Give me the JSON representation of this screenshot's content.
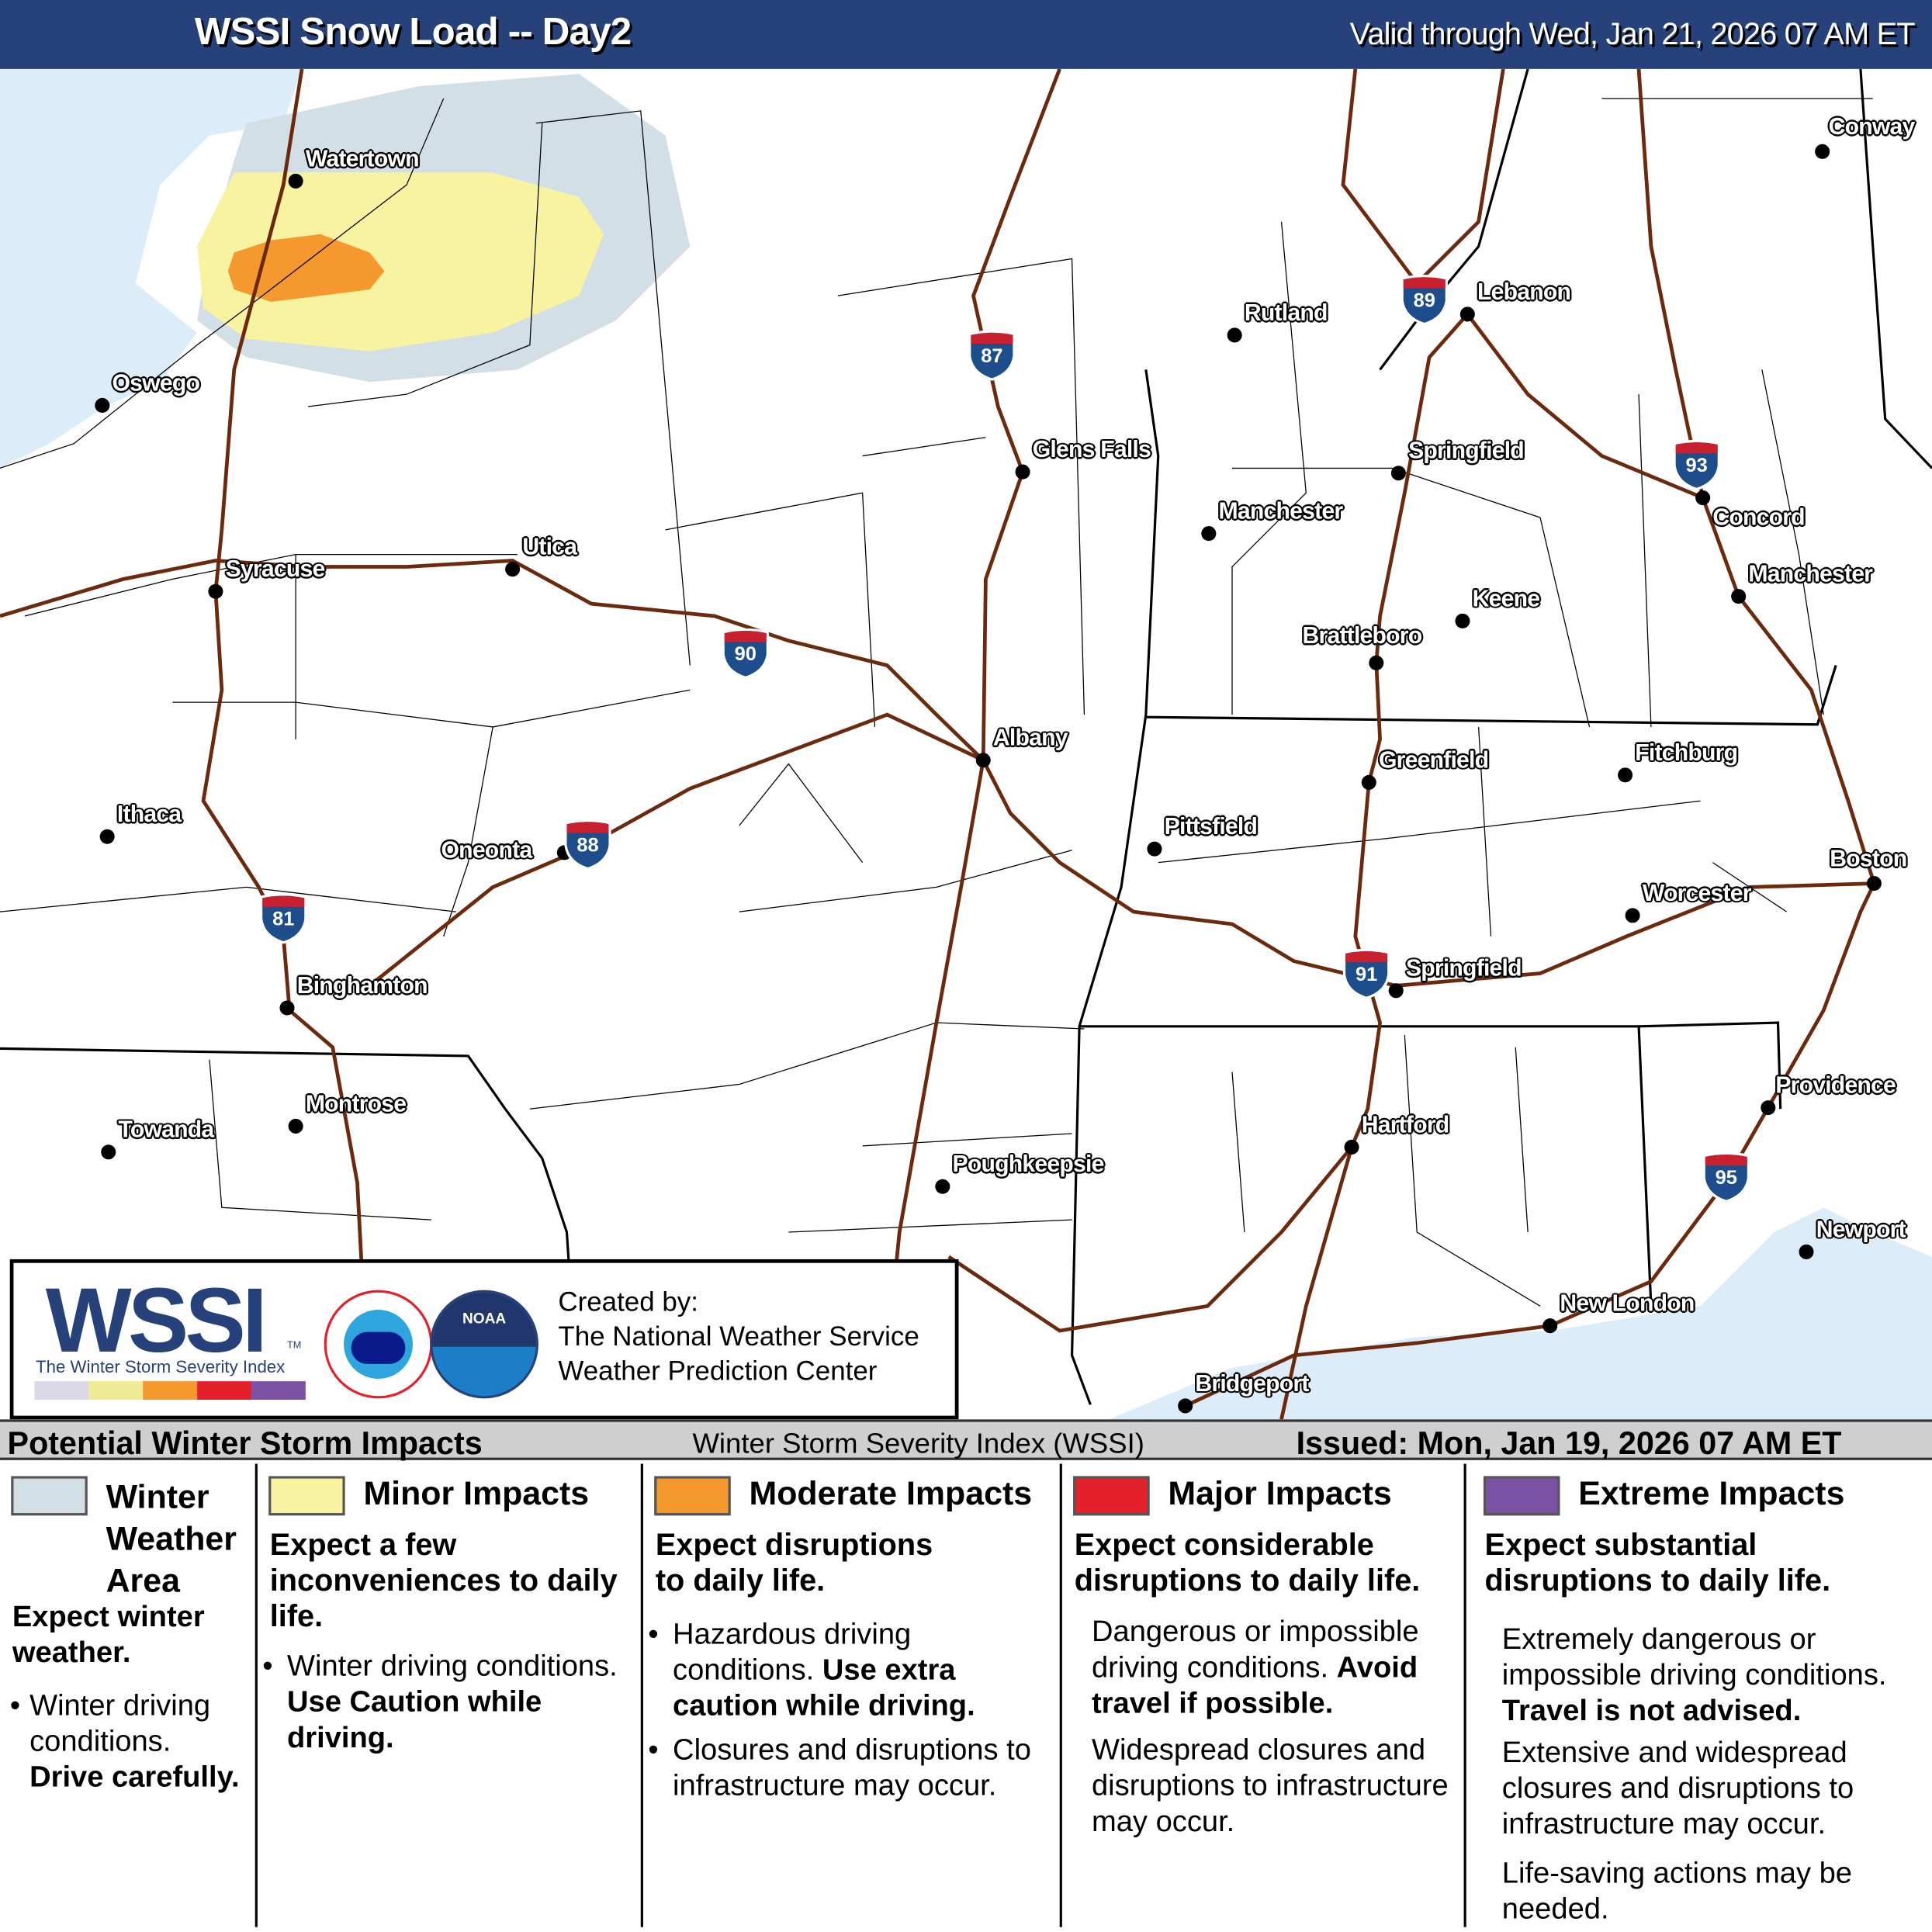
{
  "header": {
    "title": "WSSI Snow Load -- Day2",
    "valid": "Valid through Wed, Jan 21, 2026 07 AM ET"
  },
  "colors": {
    "header_bg": "#27427a",
    "water": "#dcedf9",
    "winter_weather_area": "#d3dfe7",
    "minor": "#f8f3a0",
    "moderate": "#f5992f",
    "major": "#e4202a",
    "extreme": "#7b51a3",
    "road": "#6b2a0e",
    "shield_blue": "#1e4d8c",
    "shield_red": "#c8202e"
  },
  "cities": [
    {
      "name": "Watertown"
    },
    {
      "name": "Oswego"
    },
    {
      "name": "Syracuse"
    },
    {
      "name": "Utica"
    },
    {
      "name": "Ithaca"
    },
    {
      "name": "Oneonta"
    },
    {
      "name": "Binghamton"
    },
    {
      "name": "Towanda"
    },
    {
      "name": "Montrose"
    },
    {
      "name": "Albany"
    },
    {
      "name": "Glens Falls"
    },
    {
      "name": "Poughkeepsie"
    },
    {
      "name": "Rutland"
    },
    {
      "name": "Lebanon"
    },
    {
      "name": "Springfield"
    },
    {
      "name": "Manchester"
    },
    {
      "name": "Keene"
    },
    {
      "name": "Brattleboro"
    },
    {
      "name": "Concord"
    },
    {
      "name": "Manchester"
    },
    {
      "name": "Conway"
    },
    {
      "name": "Greenfield"
    },
    {
      "name": "Fitchburg"
    },
    {
      "name": "Pittsfield"
    },
    {
      "name": "Boston"
    },
    {
      "name": "Worcester"
    },
    {
      "name": "Springfield"
    },
    {
      "name": "Hartford"
    },
    {
      "name": "Providence"
    },
    {
      "name": "Newport"
    },
    {
      "name": "New London"
    },
    {
      "name": "Bridgeport"
    }
  ],
  "interstates": [
    "87",
    "89",
    "93",
    "90",
    "88",
    "81",
    "91",
    "95"
  ],
  "credit": {
    "logo_text": "WSSI",
    "logo_tm": "TM",
    "logo_subtitle": "The Winter Storm Severity Index",
    "created_by": "Created by:",
    "org1": "The National Weather Service",
    "org2": "Weather Prediction Center",
    "nws_logo": "NATIONAL WEATHER SERVICE",
    "noaa_logo": "NOAA"
  },
  "legend": {
    "title": "Potential Winter Storm Impacts",
    "index": "Winter Storm Severity Index (WSSI)",
    "issued": "Issued: Mon, Jan 19, 2026 07 AM ET",
    "categories": [
      {
        "name": "Winter Weather Area",
        "headline": "Expect winter weather.",
        "b1": "Winter driving conditions.",
        "b1_bold": "Drive carefully."
      },
      {
        "name": "Minor Impacts",
        "headline": "Expect a few inconveniences to daily life.",
        "b1": "Winter driving conditions.",
        "b1_bold": "Use Caution while driving."
      },
      {
        "name": "Moderate Impacts",
        "headline": "Expect disruptions to daily life.",
        "b1": "Hazardous driving conditions.",
        "b1_bold": "Use extra caution while driving.",
        "b2": "Closures and disruptions to infrastructure may occur."
      },
      {
        "name": "Major Impacts",
        "headline": "Expect considerable disruptions to daily life.",
        "b1": "Dangerous or impossible driving conditions.",
        "b1_bold": "Avoid travel if possible.",
        "b2": "Widespread closures and disruptions to infrastructure may occur."
      },
      {
        "name": "Extreme Impacts",
        "headline": "Expect substantial disruptions to daily life.",
        "b1": "Extremely dangerous or impossible driving conditions.",
        "b1_bold": "Travel is not advised.",
        "b2": "Extensive and widespread closures and disruptions to infrastructure may occur.",
        "b3": "Life-saving actions may be needed."
      }
    ]
  }
}
